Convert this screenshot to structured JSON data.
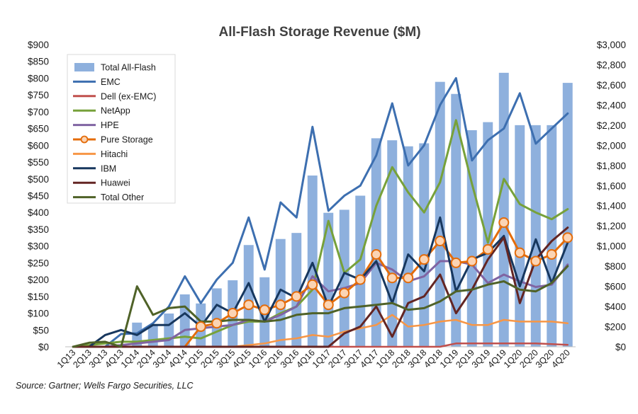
{
  "chart_data": {
    "type": "bar+line",
    "title": "All-Flash Storage Revenue ($M)",
    "xlabel": "",
    "ylabel_left": "",
    "ylabel_right": "",
    "ylim_left": [
      0,
      900
    ],
    "ylim_right": [
      0,
      3000
    ],
    "left_ticks": [
      "$0",
      "$50",
      "$100",
      "$150",
      "$200",
      "$250",
      "$300",
      "$350",
      "$400",
      "$450",
      "$500",
      "$550",
      "$600",
      "$650",
      "$700",
      "$750",
      "$800",
      "$850",
      "$900"
    ],
    "right_ticks": [
      "$0",
      "$200",
      "$400",
      "$600",
      "$800",
      "$1,000",
      "$1,200",
      "$1,400",
      "$1,600",
      "$1,800",
      "$2,000",
      "$2,200",
      "$2,400",
      "$2,600",
      "$2,800",
      "$3,000"
    ],
    "categories": [
      "1Q13",
      "2Q13",
      "3Q13",
      "4Q13",
      "1Q14",
      "2Q14",
      "3Q14",
      "4Q14",
      "1Q15",
      "2Q15",
      "3Q15",
      "4Q15",
      "1Q16",
      "2Q16",
      "3Q16",
      "4Q16",
      "1Q17",
      "2Q17",
      "3Q17",
      "4Q17",
      "1Q18",
      "2Q18",
      "3Q18",
      "4Q18",
      "1Q19",
      "2Q19",
      "3Q19",
      "4Q19",
      "1Q20",
      "2Q20",
      "3Q20",
      "4Q20"
    ],
    "legend_position": "top-left",
    "grid": false,
    "bar_series": {
      "name": "Total All-Flash",
      "axis": "right",
      "color": "#8eb0dd",
      "values": [
        0,
        0,
        0,
        0,
        240,
        215,
        330,
        520,
        430,
        580,
        660,
        1010,
        690,
        1070,
        1130,
        1700,
        1330,
        1360,
        1500,
        2070,
        2050,
        1990,
        2020,
        2630,
        2510,
        2150,
        2230,
        2720,
        2200,
        2200,
        2200,
        2620
      ]
    },
    "series": [
      {
        "name": "EMC",
        "axis": "left",
        "color": "#3d6fb0",
        "width": 3,
        "marker": false,
        "values": [
          0,
          0,
          0,
          38,
          40,
          70,
          120,
          210,
          130,
          200,
          250,
          385,
          230,
          430,
          385,
          655,
          405,
          450,
          480,
          570,
          725,
          540,
          600,
          720,
          800,
          555,
          615,
          650,
          755,
          605,
          650,
          695
        ]
      },
      {
        "name": "Dell (ex-EMC)",
        "axis": "left",
        "color": "#c0504d",
        "width": 2.5,
        "marker": false,
        "values": [
          0,
          0,
          0,
          0,
          0,
          0,
          0,
          0,
          0,
          0,
          0,
          0,
          0,
          0,
          0,
          0,
          0,
          0,
          0,
          0,
          0,
          0,
          0,
          0,
          10,
          10,
          10,
          10,
          10,
          10,
          8,
          6
        ]
      },
      {
        "name": "NetApp",
        "axis": "left",
        "color": "#77a13a",
        "width": 3,
        "marker": false,
        "values": [
          0,
          5,
          10,
          15,
          15,
          20,
          25,
          30,
          25,
          45,
          65,
          75,
          75,
          100,
          120,
          170,
          375,
          220,
          260,
          420,
          535,
          460,
          400,
          490,
          675,
          485,
          310,
          500,
          425,
          400,
          380,
          410
        ]
      },
      {
        "name": "HPE",
        "axis": "left",
        "color": "#8064a2",
        "width": 3,
        "marker": false,
        "values": [
          0,
          0,
          0,
          5,
          10,
          15,
          20,
          50,
          55,
          60,
          65,
          80,
          75,
          95,
          120,
          210,
          165,
          175,
          190,
          250,
          230,
          195,
          210,
          255,
          255,
          245,
          190,
          215,
          195,
          178,
          185,
          245
        ]
      },
      {
        "name": "Pure Storage",
        "axis": "left",
        "color": "#e46c0a",
        "width": 3,
        "marker": true,
        "values": [
          0,
          0,
          0,
          0,
          0,
          0,
          0,
          0,
          60,
          70,
          100,
          125,
          110,
          125,
          150,
          185,
          125,
          160,
          200,
          275,
          205,
          205,
          260,
          315,
          250,
          255,
          290,
          370,
          280,
          255,
          275,
          325
        ]
      },
      {
        "name": "Hitachi",
        "axis": "left",
        "color": "#f79646",
        "width": 2.5,
        "marker": false,
        "values": [
          0,
          0,
          0,
          0,
          0,
          0,
          0,
          0,
          0,
          0,
          0,
          5,
          10,
          20,
          25,
          35,
          30,
          45,
          55,
          65,
          95,
          60,
          65,
          75,
          80,
          65,
          65,
          80,
          75,
          75,
          75,
          70
        ]
      },
      {
        "name": "IBM",
        "axis": "left",
        "color": "#17375e",
        "width": 3,
        "marker": false,
        "values": [
          0,
          0,
          35,
          50,
          35,
          65,
          65,
          100,
          60,
          125,
          100,
          190,
          75,
          170,
          145,
          250,
          120,
          220,
          200,
          255,
          130,
          275,
          225,
          385,
          165,
          260,
          280,
          330,
          180,
          320,
          190,
          310
        ]
      },
      {
        "name": "Huawei",
        "axis": "left",
        "color": "#632523",
        "width": 3,
        "marker": false,
        "values": [
          0,
          0,
          0,
          0,
          0,
          0,
          0,
          0,
          0,
          0,
          0,
          0,
          0,
          0,
          0,
          0,
          0,
          40,
          60,
          120,
          30,
          130,
          150,
          215,
          100,
          170,
          260,
          325,
          130,
          260,
          315,
          355
        ]
      },
      {
        "name": "Total Other",
        "axis": "left",
        "color": "#4f6228",
        "width": 3,
        "marker": false,
        "values": [
          0,
          12,
          15,
          0,
          180,
          95,
          115,
          120,
          75,
          75,
          80,
          80,
          75,
          80,
          95,
          100,
          100,
          115,
          120,
          125,
          130,
          110,
          115,
          135,
          165,
          170,
          185,
          195,
          170,
          165,
          190,
          240
        ]
      }
    ]
  },
  "source_text": "Source: Gartner; Wells Fargo Securities, LLC"
}
